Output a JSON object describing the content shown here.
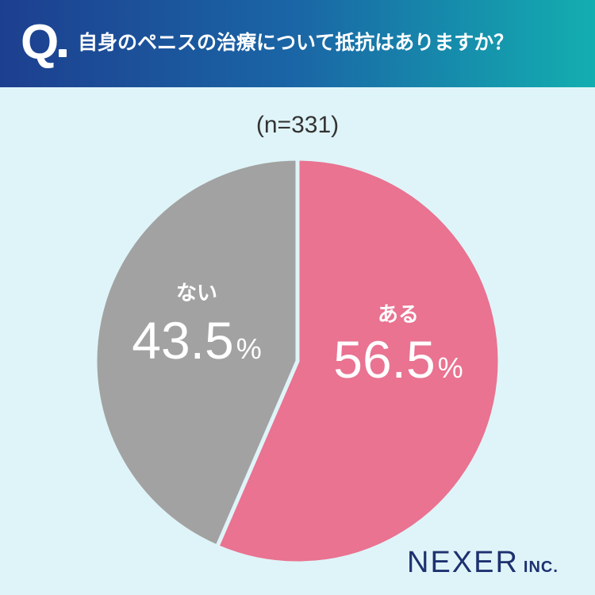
{
  "header": {
    "q_mark": "Q",
    "question": "自身のペニスの治療について抵抗はありますか？"
  },
  "sample_size": "(n=331)",
  "chart_data": {
    "type": "pie",
    "title": "自身のペニスの治療について抵抗はありますか？",
    "slices": [
      {
        "label": "ある",
        "value": 56.5,
        "display": "56.5",
        "unit": "%",
        "color": "#e97391"
      },
      {
        "label": "ない",
        "value": 43.5,
        "display": "43.5",
        "unit": "%",
        "color": "#a2a2a2"
      }
    ],
    "start_angle_deg": 0,
    "direction": "clockwise"
  },
  "logo": {
    "main": "NEXER",
    "sub": "INC."
  }
}
